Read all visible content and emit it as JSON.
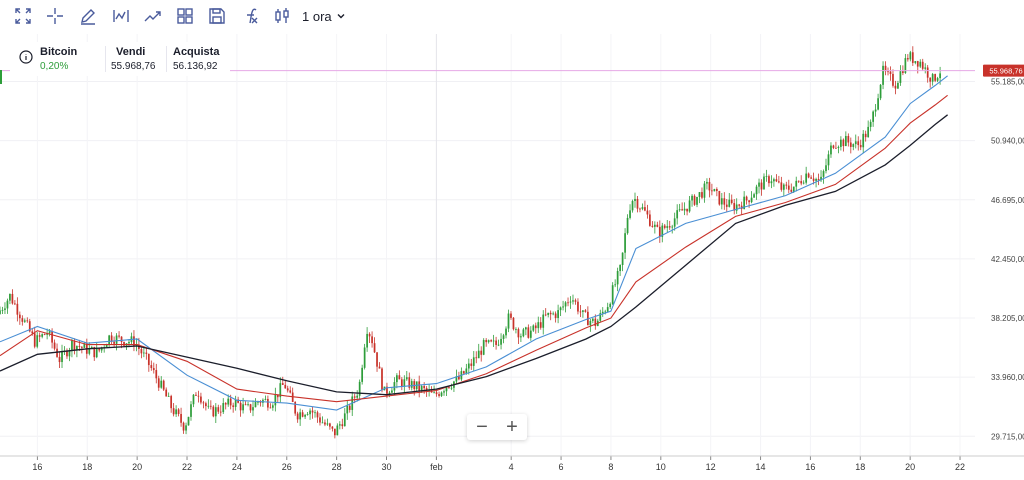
{
  "toolbar": {
    "icons": [
      "fullscreen-icon",
      "crosshair-icon",
      "pencil-icon",
      "indicator-icon",
      "trend-icon",
      "layout-grid-icon",
      "save-icon",
      "function-icon",
      "candle-type-icon"
    ],
    "timeframe": "1 ora"
  },
  "quote": {
    "name": "Bitcoin",
    "change": "0,20%",
    "sell_label": "Vendi",
    "sell_value": "55.968,76",
    "buy_label": "Acquista",
    "buy_value": "56.136,92"
  },
  "colors": {
    "up": "#2e9d3a",
    "down": "#c8322a",
    "ma_fast": "#4a8fd4",
    "ma_mid": "#c8322a",
    "ma_slow": "#1b1e2b",
    "price_line": "#e6a8e6",
    "price_tag": "#c8322a"
  },
  "zoom": {
    "minus": "−",
    "plus": "+"
  },
  "chart_data": {
    "type": "line",
    "description_series": "candlestick",
    "y_ticks": [
      "55.185,00",
      "50.940,00",
      "46.695,00",
      "42.450,00",
      "38.205,00",
      "33.960,00",
      "29.715,00"
    ],
    "y_tick_values": [
      55185,
      50940,
      46695,
      42450,
      38205,
      33960,
      29715
    ],
    "ylim": [
      28300,
      58600
    ],
    "current_price_label": "55.968,76",
    "current_price": 55968.76,
    "x_ticks": [
      "16",
      "18",
      "20",
      "22",
      "24",
      "26",
      "28",
      "30",
      "feb",
      "4",
      "6",
      "8",
      "10",
      "12",
      "14",
      "16",
      "18",
      "20",
      "22"
    ],
    "x_tick_days": [
      16,
      18,
      20,
      22,
      24,
      26,
      28,
      30,
      32,
      35,
      37,
      39,
      41,
      43,
      45,
      47,
      49,
      51,
      53
    ],
    "xlim_days": [
      14.5,
      53.6
    ],
    "series": [
      {
        "days": [
          14.5,
          15,
          15.5,
          16,
          16.5,
          17,
          17.5,
          18,
          18.5,
          19,
          19.5,
          20,
          20.5,
          21,
          21.5,
          22,
          22.5,
          23,
          23.5,
          24,
          24.5,
          25,
          25.5,
          26,
          26.5,
          27,
          27.5,
          28,
          28.5,
          29,
          29.3,
          29.5,
          30,
          30.5,
          31,
          31.5,
          32,
          32.5,
          33,
          33.5,
          34,
          34.5,
          35,
          35.5,
          36,
          36.5,
          37,
          37.5,
          38,
          38.5,
          39,
          39.5,
          39.8,
          40,
          40.5,
          41,
          41.5,
          42,
          42.5,
          43,
          43.5,
          44,
          44.5,
          45,
          45.5,
          46,
          46.5,
          47,
          47.5,
          48,
          48.5,
          49,
          49.5,
          50,
          50.5,
          51,
          51.5,
          52,
          52.3
        ],
        "values": [
          38500,
          39800,
          38200,
          36500,
          37200,
          35200,
          36400,
          36000,
          35700,
          36900,
          36600,
          36500,
          35100,
          33500,
          31700,
          30400,
          33100,
          31400,
          31800,
          32200,
          31600,
          32300,
          32200,
          33500,
          31300,
          31700,
          30800,
          29900,
          31400,
          33200,
          37600,
          36800,
          32800,
          33700,
          33500,
          33100,
          32600,
          33400,
          33800,
          34900,
          36200,
          36300,
          38200,
          37000,
          37300,
          38300,
          38600,
          39800,
          38300,
          37800,
          39300,
          41800,
          46000,
          46900,
          45700,
          44300,
          45100,
          46000,
          46800,
          47700,
          46600,
          46200,
          46600,
          47600,
          48300,
          47400,
          47700,
          48700,
          47900,
          50800,
          50900,
          50600,
          51900,
          55900,
          55000,
          57000,
          56600,
          55300,
          55970
        ]
      },
      {
        "name": "",
        "days": [
          14.5,
          16,
          18,
          20,
          22,
          24,
          26,
          28,
          30,
          32,
          34,
          36,
          38,
          39,
          40,
          42,
          44,
          46,
          48,
          50,
          51,
          52,
          52.5
        ],
        "values": [
          36500,
          37600,
          36400,
          36700,
          34100,
          32300,
          32100,
          31600,
          33200,
          33500,
          34700,
          36700,
          38100,
          38700,
          43200,
          45000,
          46000,
          47000,
          48600,
          51200,
          53600,
          54900,
          55600
        ]
      },
      {
        "name": "",
        "days": [
          14.5,
          16,
          18,
          20,
          22,
          24,
          26,
          28,
          30,
          32,
          34,
          36,
          38,
          39,
          40,
          42,
          44,
          46,
          48,
          50,
          51,
          52,
          52.5
        ],
        "values": [
          35500,
          37300,
          36300,
          36300,
          35100,
          33100,
          32600,
          32200,
          32600,
          33000,
          34200,
          35900,
          37500,
          38200,
          40800,
          43300,
          45500,
          46500,
          47800,
          50400,
          52200,
          53500,
          54200
        ]
      },
      {
        "name": "",
        "days": [
          14.5,
          16,
          18,
          20,
          22,
          24,
          26,
          28,
          30,
          32,
          34,
          36,
          38,
          39,
          40,
          42,
          44,
          46,
          48,
          50,
          51,
          52,
          52.5
        ],
        "values": [
          34400,
          35600,
          36000,
          36200,
          35400,
          34600,
          33700,
          32900,
          32700,
          33100,
          34000,
          35300,
          36700,
          37600,
          39000,
          42000,
          45000,
          46300,
          47300,
          49200,
          50600,
          52100,
          52800
        ]
      }
    ],
    "candles_count": 380
  }
}
